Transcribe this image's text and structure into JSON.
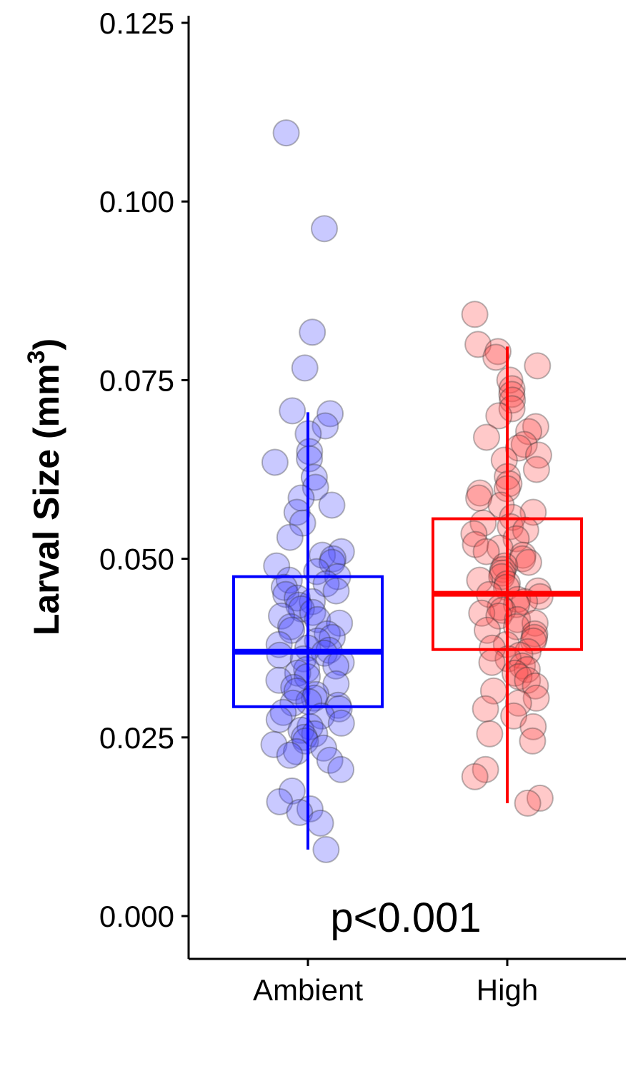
{
  "chart_data": {
    "type": "box",
    "title": "",
    "xlabel": "",
    "ylabel": "Larval Size (mm",
    "ylabel_superscript": "3",
    "ylabel_close": ")",
    "ylim": [
      -0.006,
      0.126
    ],
    "yticks": [
      0.0,
      0.025,
      0.05,
      0.075,
      0.1,
      0.125
    ],
    "ytick_labels": [
      "0.000",
      "0.025",
      "0.050",
      "0.075",
      "0.100",
      "0.125"
    ],
    "categories": [
      "Ambient",
      "High"
    ],
    "annotation": "p<0.001",
    "series": [
      {
        "name": "Ambient",
        "color": "#0000ff",
        "point_fill": "#4d4dff",
        "box": {
          "whisker_low": 0.0093,
          "q1": 0.0293,
          "median": 0.037,
          "q3": 0.0475,
          "whisker_high": 0.0705
        },
        "points": [
          0.1096,
          0.0962,
          0.0817,
          0.0767,
          0.0707,
          0.0703,
          0.0686,
          0.0675,
          0.065,
          0.064,
          0.0635,
          0.0614,
          0.06,
          0.0585,
          0.0575,
          0.0565,
          0.055,
          0.053,
          0.051,
          0.0505,
          0.05,
          0.0495,
          0.049,
          0.0482,
          0.0475,
          0.047,
          0.0465,
          0.046,
          0.0455,
          0.045,
          0.0445,
          0.044,
          0.0435,
          0.043,
          0.0425,
          0.042,
          0.0415,
          0.041,
          0.0405,
          0.04,
          0.0395,
          0.039,
          0.0385,
          0.038,
          0.0375,
          0.0372,
          0.0368,
          0.0365,
          0.036,
          0.0355,
          0.035,
          0.0345,
          0.034,
          0.0335,
          0.033,
          0.0325,
          0.032,
          0.0315,
          0.031,
          0.0305,
          0.03,
          0.0298,
          0.0295,
          0.029,
          0.0285,
          0.028,
          0.0275,
          0.027,
          0.0265,
          0.026,
          0.0255,
          0.025,
          0.0245,
          0.024,
          0.0235,
          0.023,
          0.0225,
          0.0218,
          0.0205,
          0.0175,
          0.016,
          0.015,
          0.0145,
          0.013,
          0.0093
        ]
      },
      {
        "name": "High",
        "color": "#ff0000",
        "point_fill": "#ff4d4d",
        "box": {
          "whisker_low": 0.0158,
          "q1": 0.0373,
          "median": 0.0451,
          "q3": 0.0556,
          "whisker_high": 0.0797
        },
        "points": [
          0.0842,
          0.08,
          0.079,
          0.0782,
          0.077,
          0.075,
          0.0738,
          0.073,
          0.0722,
          0.071,
          0.07,
          0.0685,
          0.0678,
          0.067,
          0.066,
          0.0655,
          0.0645,
          0.0638,
          0.0625,
          0.0615,
          0.0605,
          0.0598,
          0.0592,
          0.0585,
          0.0575,
          0.0565,
          0.0558,
          0.055,
          0.0545,
          0.054,
          0.0535,
          0.0528,
          0.052,
          0.0515,
          0.051,
          0.0505,
          0.05,
          0.0495,
          0.049,
          0.0485,
          0.048,
          0.0475,
          0.047,
          0.0465,
          0.046,
          0.0455,
          0.045,
          0.0447,
          0.0443,
          0.044,
          0.0436,
          0.0432,
          0.0428,
          0.0424,
          0.042,
          0.0415,
          0.041,
          0.0405,
          0.04,
          0.0395,
          0.039,
          0.0385,
          0.038,
          0.0375,
          0.037,
          0.0365,
          0.036,
          0.0355,
          0.035,
          0.0345,
          0.034,
          0.0335,
          0.033,
          0.0322,
          0.0315,
          0.0305,
          0.0298,
          0.029,
          0.028,
          0.0265,
          0.0255,
          0.0245,
          0.0205,
          0.0195,
          0.0165,
          0.0158
        ]
      }
    ]
  }
}
